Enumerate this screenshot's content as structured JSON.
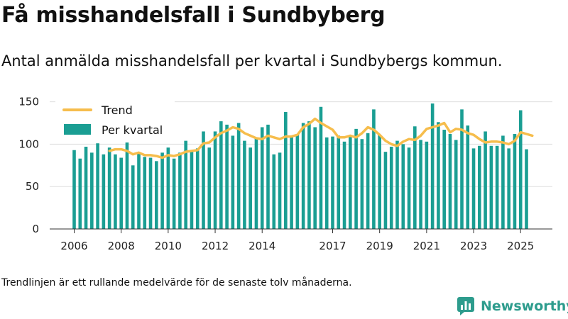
{
  "title": "Få misshandelsfall i Sundbyberg",
  "subtitle": "Antal anmälda misshandelsfall per kvartal i Sundbybergs kommun.",
  "footnote": "Trendlinjen är ett rullande medelvärde för de senaste tolv månaderna.",
  "brand": {
    "name": "Newsworthy",
    "logo_icon": "newsworthy-logo-icon"
  },
  "colors": {
    "bars": "#1a9e93",
    "trend": "#f6bd4c",
    "grid": "#dddddd",
    "brand": "#2d9c8d"
  },
  "chart_data": {
    "type": "bar",
    "x_ticks": [
      "2006",
      "2008",
      "2010",
      "2012",
      "2014",
      "2017",
      "2019",
      "2021",
      "2023",
      "2025"
    ],
    "y_ticks": [
      "0",
      "50",
      "100",
      "150"
    ],
    "ylim": [
      0,
      158
    ],
    "grid": true,
    "legend_position": "top-left",
    "series": [
      {
        "name": "Per kvartal",
        "type": "bar",
        "values": [
          93,
          83,
          97,
          90,
          101,
          88,
          96,
          88,
          84,
          102,
          75,
          90,
          85,
          84,
          80,
          90,
          96,
          83,
          90,
          104,
          92,
          95,
          115,
          96,
          115,
          127,
          123,
          110,
          125,
          104,
          96,
          107,
          120,
          123,
          88,
          90,
          138,
          108,
          112,
          125,
          127,
          120,
          144,
          108,
          109,
          110,
          103,
          110,
          118,
          106,
          113,
          141,
          111,
          91,
          97,
          104,
          100,
          96,
          121,
          105,
          103,
          148,
          126,
          117,
          112,
          105,
          141,
          122,
          95,
          98,
          115,
          98,
          98,
          110,
          95,
          112,
          140,
          94
        ]
      },
      {
        "name": "Trend",
        "type": "line",
        "start_index": 6,
        "values": [
          92,
          94,
          94,
          92,
          88,
          90,
          87,
          87,
          86,
          84,
          87,
          86,
          88,
          91,
          92,
          93,
          101,
          102,
          108,
          113,
          116,
          120,
          118,
          113,
          110,
          107,
          106,
          110,
          108,
          106,
          109,
          109,
          111,
          120,
          124,
          130,
          125,
          121,
          117,
          108,
          108,
          110,
          108,
          113,
          120,
          117,
          111,
          104,
          100,
          98,
          103,
          106,
          105,
          110,
          118,
          120,
          122,
          125,
          114,
          118,
          117,
          113,
          111,
          106,
          102,
          103,
          103,
          102,
          100,
          104,
          114,
          112,
          110
        ]
      }
    ]
  }
}
